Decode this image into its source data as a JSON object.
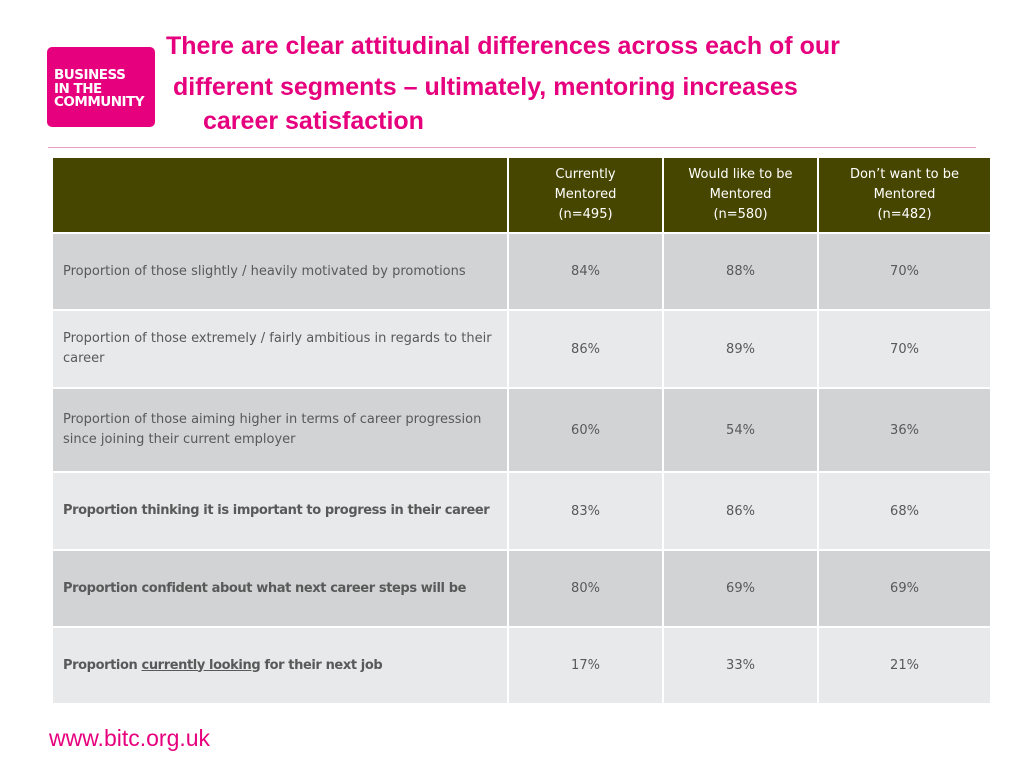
{
  "logo": {
    "lines": [
      "BUSINESS",
      "IN THE",
      "COMMUNITY"
    ]
  },
  "title": {
    "line1": "There are clear attitudinal differences across each of our",
    "line2": "different segments – ultimately, mentoring increases",
    "line3": "career satisfaction"
  },
  "table": {
    "columns": [
      {
        "line1": "Currently",
        "line2": "Mentored",
        "line3": "(n=495)"
      },
      {
        "line1": "Would like to be",
        "line2": "Mentored",
        "line3": "(n=580)"
      },
      {
        "line1": "Don’t want to be",
        "line2": "Mentored",
        "line3": "(n=482)"
      }
    ],
    "rows": [
      {
        "label": "Proportion of those slightly / heavily motivated by promotions",
        "values": [
          "84%",
          "88%",
          "70%"
        ]
      },
      {
        "label": "Proportion of those extremely / fairly ambitious in regards to their career",
        "values": [
          "86%",
          "89%",
          "70%"
        ]
      },
      {
        "label": "Proportion of those aiming higher in terms of career progression since joining their current employer",
        "values": [
          "60%",
          "54%",
          "36%"
        ]
      },
      {
        "label": "Proportion thinking it is important to progress in their career",
        "values": [
          "83%",
          "86%",
          "68%"
        ]
      },
      {
        "label": "Proportion confident about what next career steps will be",
        "values": [
          "80%",
          "69%",
          "69%"
        ]
      },
      {
        "label_pre": "Proportion ",
        "label_underlined": "currently looking",
        "label_post": " for their next job",
        "values": [
          "17%",
          "33%",
          "21%"
        ]
      }
    ]
  },
  "footer": {
    "url": "www.bitc.org.uk"
  },
  "colors": {
    "brand_pink": "#e6007e",
    "header_olive": "#474600",
    "row_dark": "#d1d3d4",
    "row_light": "#e8e9ea",
    "body_text": "#595959"
  }
}
